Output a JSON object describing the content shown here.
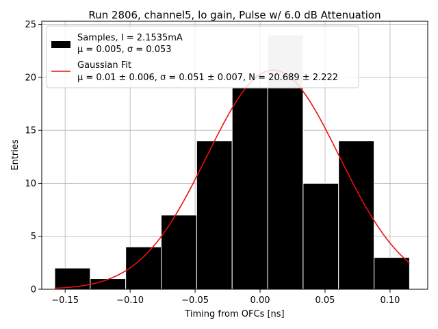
{
  "chart_data": {
    "type": "bar",
    "title": "Run 2806, channel5, lo gain, Pulse w/ 6.0 dB Attenuation",
    "xlabel": "Timing from OFCs [ns]",
    "ylabel": "Entries",
    "xlim": [
      -0.168,
      0.129
    ],
    "ylim": [
      0,
      25.3
    ],
    "xticks": [
      -0.15,
      -0.1,
      -0.05,
      0.0,
      0.05,
      0.1
    ],
    "xtick_labels": [
      "−0.15",
      "−0.10",
      "−0.05",
      "0.00",
      "0.05",
      "0.10"
    ],
    "yticks": [
      0,
      5,
      10,
      15,
      20,
      25
    ],
    "ytick_labels": [
      "0",
      "5",
      "10",
      "15",
      "20",
      "25"
    ],
    "grid": true,
    "legend_position": "top-left",
    "histogram": {
      "bin_edges": [
        -0.158,
        -0.1307,
        -0.1034,
        -0.0761,
        -0.0488,
        -0.0215,
        0.0058,
        0.0331,
        0.0604,
        0.0877,
        0.115
      ],
      "counts": [
        2,
        1,
        4,
        7,
        14,
        19,
        24,
        10,
        14,
        3
      ],
      "fill_color": "#000000",
      "highlight_color": "#c8c8c8"
    },
    "fit": {
      "mu": 0.01,
      "sigma": 0.051,
      "N": 20.689,
      "color": "#e8110e",
      "x_range": [
        -0.158,
        0.115
      ]
    },
    "legend": [
      {
        "line1": "Samples, I = 2.1535mA",
        "line2": "μ = 0.005, σ = 0.053",
        "swatch": "bar"
      },
      {
        "line1": "Gaussian Fit",
        "line2": "μ = 0.01 ± 0.006, σ = 0.051 ± 0.007, N = 20.689 ± 2.222",
        "swatch": "line"
      }
    ]
  }
}
